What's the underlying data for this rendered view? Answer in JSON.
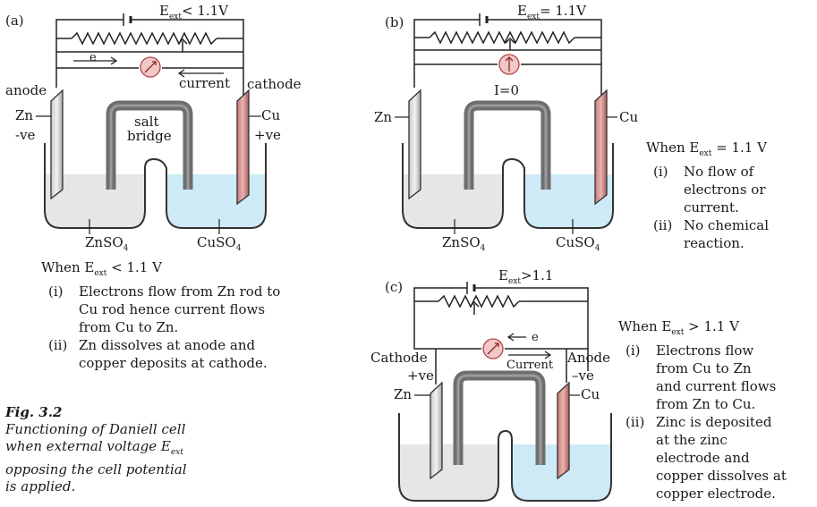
{
  "panels": [
    {
      "id": "a",
      "tag": "(a)",
      "eext_label": "< 1.1V",
      "electron_label": "e",
      "current_label": "current",
      "left_label_top": "anode",
      "left_electrode_label": "Zn",
      "left_sign": "-ve",
      "right_label_top": "cathode",
      "right_electrode_label": "Cu",
      "right_sign": "+ve",
      "salt_bridge_line1": "salt",
      "salt_bridge_line2": "bridge",
      "left_solution": "ZnSO",
      "right_solution": "CuSO",
      "sub4": "4"
    },
    {
      "id": "b",
      "tag": "(b)",
      "eext_label": "= 1.1V",
      "current_zero": "I=0",
      "left_electrode_label": "Zn",
      "right_electrode_label": "Cu",
      "left_solution": "ZnSO",
      "right_solution": "CuSO",
      "sub4": "4"
    },
    {
      "id": "c",
      "tag": "(c)",
      "eext_label": ">1.1",
      "electron_label": "e",
      "current_label": "Current",
      "left_label_top": "Cathode",
      "left_sign": "+ve",
      "left_electrode_label": "Zn",
      "right_label_top": "Anode",
      "right_sign": "–ve",
      "right_electrode_label": "Cu"
    }
  ],
  "eext_symbol": "E",
  "eext_sub": "ext",
  "notes": [
    {
      "id": "a",
      "head_prefix": "When E",
      "head_suffix": " < 1.1 V",
      "items": [
        {
          "num": "(i)",
          "lines": [
            "Electrons flow from Zn rod to",
            "Cu rod hence current flows",
            "from Cu to Zn."
          ]
        },
        {
          "num": "(ii)",
          "lines": [
            "Zn dissolves at anode and",
            "copper deposits at cathode."
          ]
        }
      ]
    },
    {
      "id": "b",
      "head_prefix": "When E",
      "head_suffix": " = 1.1 V",
      "items": [
        {
          "num": "(i)",
          "lines": [
            "No flow of",
            "electrons or",
            "current."
          ]
        },
        {
          "num": "(ii)",
          "lines": [
            "No chemical",
            "reaction."
          ]
        }
      ]
    },
    {
      "id": "c",
      "head_prefix": "When E",
      "head_suffix": " > 1.1 V",
      "items": [
        {
          "num": "(i)",
          "lines": [
            "Electrons flow",
            "from Cu to Zn",
            "and current flows",
            "from Zn to Cu."
          ]
        },
        {
          "num": "(ii)",
          "lines": [
            "Zinc is deposited",
            "at the zinc",
            "electrode and",
            "copper dissolves at",
            "copper electrode."
          ]
        }
      ]
    }
  ],
  "caption": {
    "fig_no": "Fig. 3.2",
    "text_before": "Functioning of Daniell cell when external voltage E",
    "text_sub": "ext",
    "text_after": " opposing the cell potential is applied."
  },
  "colors": {
    "zinc_solution": "#e6e6e6",
    "copper_solution": "#cdeaf6",
    "zinc_rod": "#d9d9d9",
    "copper_rod": "#d48c88",
    "salt_bridge": "#6e6e6e",
    "meter_fill": "#f2c7c7",
    "meter_stroke": "#b04545"
  }
}
